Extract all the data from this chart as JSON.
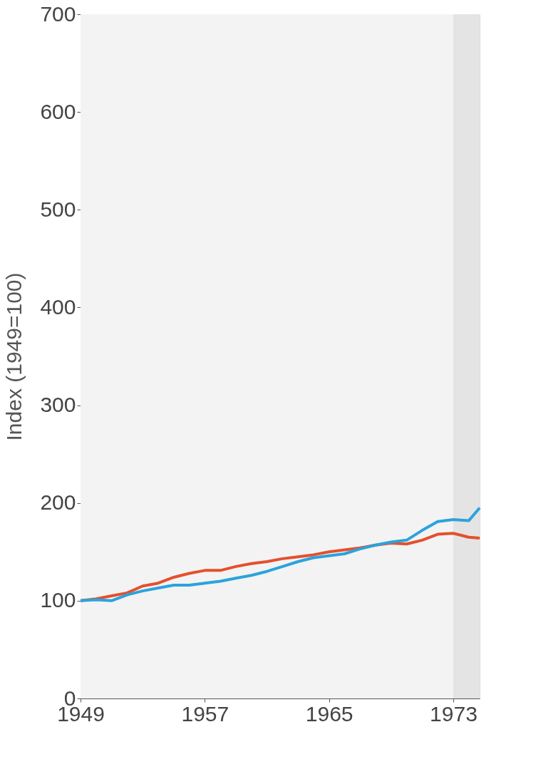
{
  "chart_data": {
    "type": "line",
    "ylabel": "Index (1949=100)",
    "x": [
      1949,
      1950,
      1951,
      1952,
      1953,
      1954,
      1955,
      1956,
      1957,
      1958,
      1959,
      1960,
      1961,
      1962,
      1963,
      1964,
      1965,
      1966,
      1967,
      1968,
      1969,
      1970,
      1971,
      1972,
      1973,
      1974,
      1974.7
    ],
    "series": [
      {
        "color": "#e4502d",
        "values": [
          100,
          102,
          105,
          108,
          115,
          118,
          124,
          128,
          131,
          131,
          135,
          138,
          140,
          143,
          145,
          147,
          150,
          152,
          154,
          157,
          159,
          158,
          162,
          168,
          169,
          165,
          164
        ]
      },
      {
        "color": "#2ba3dc",
        "values": [
          100,
          101,
          100,
          106,
          110,
          113,
          116,
          116,
          118,
          120,
          123,
          126,
          130,
          135,
          140,
          144,
          146,
          148,
          153,
          157,
          160,
          162,
          172,
          181,
          183,
          182,
          195
        ]
      }
    ],
    "xlim": [
      1949,
      1974.7
    ],
    "xticks": [
      1949,
      1957,
      1965,
      1973
    ],
    "ylim": [
      0,
      700
    ],
    "yticks": [
      0,
      100,
      200,
      300,
      400,
      500,
      600,
      700
    ],
    "bands": [
      {
        "axis": "x",
        "from": 1973,
        "to": 1974.7,
        "color": "#e4e4e4"
      }
    ],
    "grid": true,
    "line_style": "solid"
  }
}
